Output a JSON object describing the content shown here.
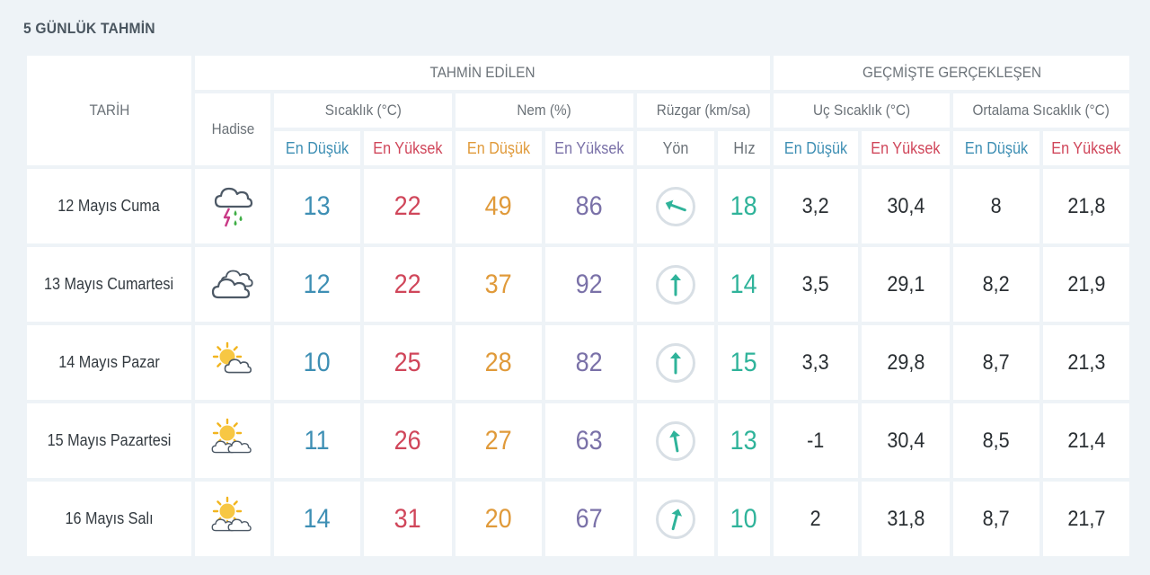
{
  "title": "5 GÜNLÜK TAHMİN",
  "headers": {
    "date": "TARİH",
    "forecast_group": "TAHMİN EDİLEN",
    "history_group": "GEÇMİŞTE GERÇEKLEŞEN",
    "phenomenon": "Hadise",
    "temperature": "Sıcaklık (°C)",
    "humidity": "Nem (%)",
    "wind": "Rüzgar (km/sa)",
    "extreme_temp": "Uç Sıcaklık (°C)",
    "avg_temp": "Ortalama Sıcaklık (°C)",
    "low": "En Düşük",
    "high": "En Yüksek",
    "direction": "Yön",
    "speed": "Hız"
  },
  "colors": {
    "low": "#3e8fb4",
    "high": "#d0465a",
    "humidity_low": "#e09a3a",
    "humidity_high": "#7a71a8",
    "wind": "#2fb39a"
  },
  "rows": [
    {
      "date": "12 Mayıs Cuma",
      "icon": "thunderstorm-icon",
      "temp_low": "13",
      "temp_high": "22",
      "hum_low": "49",
      "hum_high": "86",
      "wind_dir_deg": 110,
      "wind_speed": "18",
      "ext_low": "3,2",
      "ext_high": "30,4",
      "avg_low": "8",
      "avg_high": "21,8"
    },
    {
      "date": "13 Mayıs Cumartesi",
      "icon": "cloudy-icon",
      "temp_low": "12",
      "temp_high": "22",
      "hum_low": "37",
      "hum_high": "92",
      "wind_dir_deg": 180,
      "wind_speed": "14",
      "ext_low": "3,5",
      "ext_high": "29,1",
      "avg_low": "8,2",
      "avg_high": "21,9"
    },
    {
      "date": "14 Mayıs Pazar",
      "icon": "partly-cloudy-icon",
      "temp_low": "10",
      "temp_high": "25",
      "hum_low": "28",
      "hum_high": "82",
      "wind_dir_deg": 180,
      "wind_speed": "15",
      "ext_low": "3,3",
      "ext_high": "29,8",
      "avg_low": "8,7",
      "avg_high": "21,3"
    },
    {
      "date": "15 Mayıs Pazartesi",
      "icon": "sun-clouds-icon",
      "temp_low": "11",
      "temp_high": "26",
      "hum_low": "27",
      "hum_high": "63",
      "wind_dir_deg": 170,
      "wind_speed": "13",
      "ext_low": "-1",
      "ext_high": "30,4",
      "avg_low": "8,5",
      "avg_high": "21,4"
    },
    {
      "date": "16 Mayıs Salı",
      "icon": "sun-clouds-icon",
      "temp_low": "14",
      "temp_high": "31",
      "hum_low": "20",
      "hum_high": "67",
      "wind_dir_deg": 195,
      "wind_speed": "10",
      "ext_low": "2",
      "ext_high": "31,8",
      "avg_low": "8,7",
      "avg_high": "21,7"
    }
  ]
}
